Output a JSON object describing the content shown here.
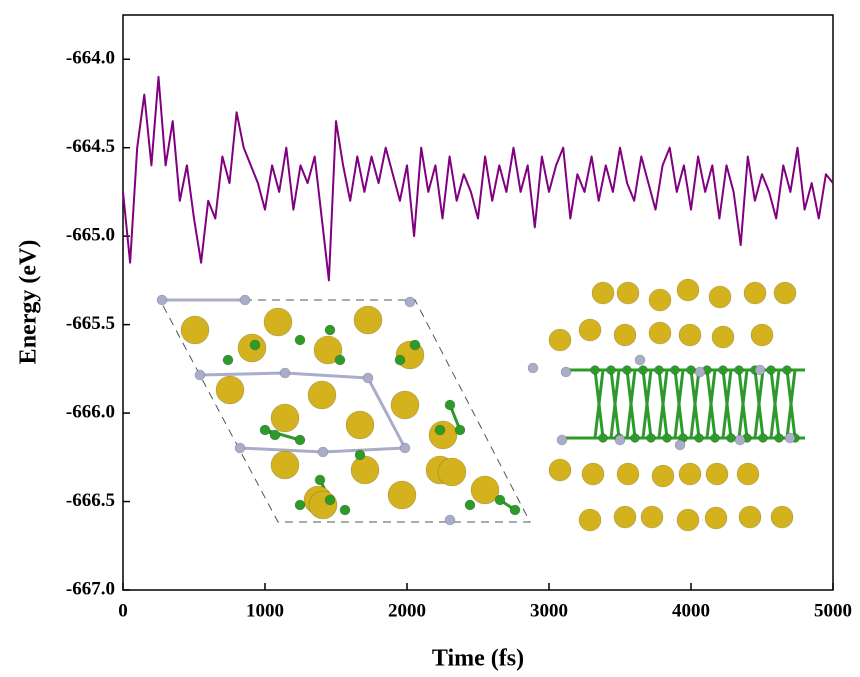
{
  "chart_data": {
    "type": "line",
    "xlabel": "Time (fs)",
    "ylabel": "Energy (eV)",
    "x": [
      0,
      50,
      100,
      150,
      200,
      250,
      300,
      350,
      400,
      450,
      500,
      550,
      600,
      650,
      700,
      750,
      800,
      850,
      900,
      950,
      1000,
      1050,
      1100,
      1150,
      1200,
      1250,
      1300,
      1350,
      1400,
      1450,
      1500,
      1550,
      1600,
      1650,
      1700,
      1750,
      1800,
      1850,
      1900,
      1950,
      2000,
      2050,
      2100,
      2150,
      2200,
      2250,
      2300,
      2350,
      2400,
      2450,
      2500,
      2550,
      2600,
      2650,
      2700,
      2750,
      2800,
      2850,
      2900,
      2950,
      3000,
      3050,
      3100,
      3150,
      3200,
      3250,
      3300,
      3350,
      3400,
      3450,
      3500,
      3550,
      3600,
      3650,
      3700,
      3750,
      3800,
      3850,
      3900,
      3950,
      4000,
      4050,
      4100,
      4150,
      4200,
      4250,
      4300,
      4350,
      4400,
      4450,
      4500,
      4550,
      4600,
      4650,
      4700,
      4750,
      4800,
      4850,
      4900,
      4950,
      5000
    ],
    "values": [
      -664.75,
      -665.15,
      -664.5,
      -664.2,
      -664.6,
      -664.1,
      -664.6,
      -664.35,
      -664.8,
      -664.6,
      -664.9,
      -665.15,
      -664.8,
      -664.9,
      -664.55,
      -664.7,
      -664.3,
      -664.5,
      -664.6,
      -664.7,
      -664.85,
      -664.6,
      -664.75,
      -664.5,
      -664.85,
      -664.6,
      -664.7,
      -664.55,
      -664.9,
      -665.25,
      -664.35,
      -664.6,
      -664.8,
      -664.55,
      -664.75,
      -664.55,
      -664.7,
      -664.5,
      -664.65,
      -664.8,
      -664.6,
      -665.0,
      -664.5,
      -664.75,
      -664.6,
      -664.9,
      -664.55,
      -664.8,
      -664.65,
      -664.75,
      -664.9,
      -664.55,
      -664.8,
      -664.6,
      -664.75,
      -664.5,
      -664.75,
      -664.6,
      -664.95,
      -664.55,
      -664.75,
      -664.6,
      -664.5,
      -664.9,
      -664.65,
      -664.75,
      -664.55,
      -664.8,
      -664.6,
      -664.75,
      -664.5,
      -664.7,
      -664.8,
      -664.55,
      -664.7,
      -664.85,
      -664.6,
      -664.5,
      -664.75,
      -664.6,
      -664.85,
      -664.55,
      -664.75,
      -664.6,
      -664.9,
      -664.6,
      -664.75,
      -665.05,
      -664.55,
      -664.8,
      -664.65,
      -664.75,
      -664.9,
      -664.6,
      -664.75,
      -664.5,
      -664.85,
      -664.7,
      -664.9,
      -664.65,
      -664.7
    ],
    "color": "#800080",
    "xlim": [
      0,
      5000
    ],
    "xticks": [
      0,
      1000,
      2000,
      3000,
      4000,
      5000
    ],
    "ylim": [
      -667,
      -663.75
    ],
    "yticks": [
      {
        "value": -667,
        "label": "-667.0"
      },
      -666.5,
      {
        "value": -666,
        "label": "-666.0"
      },
      -665.5,
      {
        "value": -665,
        "label": "-665.0"
      },
      -664.5,
      {
        "value": -664,
        "label": "-664.0"
      }
    ]
  }
}
